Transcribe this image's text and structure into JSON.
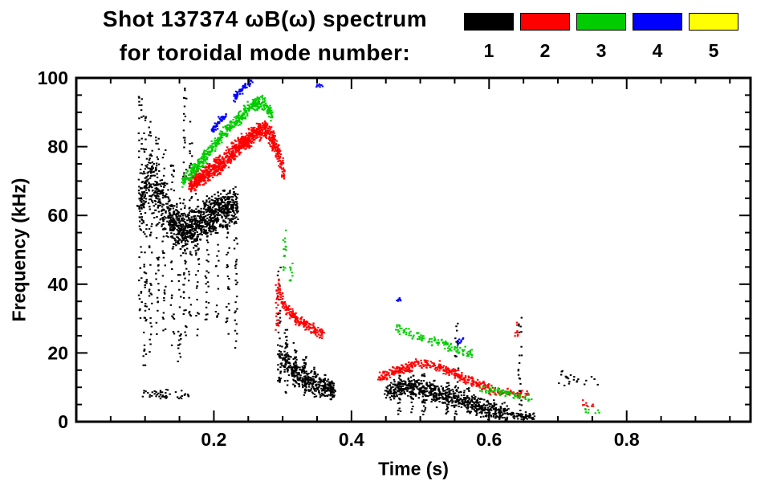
{
  "chart_data": {
    "type": "scatter",
    "title": "Shot 137374 ωB(ω) spectrum",
    "subtitle": "for toroidal mode number:",
    "xlabel": "Time (s)",
    "ylabel": "Frequency (kHz)",
    "xlim": [
      0.0,
      0.98
    ],
    "ylim": [
      0,
      100
    ],
    "xticks": [
      0.2,
      0.4,
      0.6,
      0.8
    ],
    "xtick_labels": [
      "0.2",
      "0.4",
      "0.6",
      "0.8"
    ],
    "xminor_step": 0.05,
    "yticks": [
      0,
      20,
      40,
      60,
      80,
      100
    ],
    "ytick_labels": [
      "0",
      "20",
      "40",
      "60",
      "80",
      "100"
    ],
    "yminor_step": 5,
    "grid": false,
    "legend_position": "top-right",
    "legend": [
      {
        "label": "1",
        "color": "#000000"
      },
      {
        "label": "2",
        "color": "#ff0000"
      },
      {
        "label": "3",
        "color": "#00cc00"
      },
      {
        "label": "4",
        "color": "#0000ff"
      },
      {
        "label": "5",
        "color": "#ffff00"
      }
    ],
    "series": [
      {
        "name": "toroidal mode n=1",
        "label": "1",
        "color": "#000000",
        "clusters": [
          {
            "t": [
              0.09,
              0.105,
              0.12,
              0.135
            ],
            "f": [
              62,
              70,
              65,
              61
            ],
            "spread": 9,
            "n": 260
          },
          {
            "t": [
              0.135,
              0.155,
              0.175,
              0.195,
              0.215,
              0.235
            ],
            "f": [
              60,
              55,
              57,
              60,
              62,
              63
            ],
            "spread": 6.5,
            "n": 850
          },
          {
            "t": [
              0.095,
              0.165
            ],
            "f": [
              8,
              8
            ],
            "spread": 1.5,
            "n": 45
          },
          {
            "t": [
              0.295,
              0.315,
              0.335,
              0.355,
              0.375
            ],
            "f": [
              20,
              15,
              12,
              10.5,
              9.5
            ],
            "spread": 4,
            "n": 330
          },
          {
            "t": [
              0.45,
              0.48,
              0.51,
              0.54,
              0.57,
              0.6,
              0.63
            ],
            "f": [
              9,
              10,
              9,
              7.5,
              5.5,
              3.5,
              2.5
            ],
            "spread": 3.2,
            "n": 650
          },
          {
            "t": [
              0.63,
              0.665
            ],
            "f": [
              2,
              1.5
            ],
            "spread": 1.2,
            "n": 60
          },
          {
            "t": [
              0.7,
              0.76
            ],
            "f": [
              13,
              11
            ],
            "spread": 2.5,
            "n": 22
          }
        ],
        "streaks": [
          {
            "t": 0.093,
            "f0": 30,
            "f1": 95,
            "n": 45
          },
          {
            "t": 0.1,
            "f0": 15,
            "f1": 93,
            "n": 55
          },
          {
            "t": 0.108,
            "f0": 20,
            "f1": 88,
            "n": 45
          },
          {
            "t": 0.118,
            "f0": 25,
            "f1": 83,
            "n": 40
          },
          {
            "t": 0.128,
            "f0": 22,
            "f1": 80,
            "n": 35
          },
          {
            "t": 0.14,
            "f0": 18,
            "f1": 75,
            "n": 35
          },
          {
            "t": 0.15,
            "f0": 15,
            "f1": 72,
            "n": 35
          },
          {
            "t": 0.158,
            "f0": 25,
            "f1": 97,
            "n": 50
          },
          {
            "t": 0.166,
            "f0": 30,
            "f1": 90,
            "n": 35
          },
          {
            "t": 0.176,
            "f0": 25,
            "f1": 70,
            "n": 30
          },
          {
            "t": 0.19,
            "f0": 28,
            "f1": 66,
            "n": 25
          },
          {
            "t": 0.205,
            "f0": 30,
            "f1": 66,
            "n": 25
          },
          {
            "t": 0.22,
            "f0": 25,
            "f1": 66,
            "n": 30
          },
          {
            "t": 0.232,
            "f0": 18,
            "f1": 62,
            "n": 25
          },
          {
            "t": 0.295,
            "f0": 10,
            "f1": 45,
            "n": 35
          },
          {
            "t": 0.305,
            "f0": 8,
            "f1": 27,
            "n": 30
          },
          {
            "t": 0.318,
            "f0": 8,
            "f1": 23,
            "n": 28
          },
          {
            "t": 0.332,
            "f0": 7,
            "f1": 19,
            "n": 26
          },
          {
            "t": 0.347,
            "f0": 7,
            "f1": 16,
            "n": 22
          },
          {
            "t": 0.36,
            "f0": 7,
            "f1": 14,
            "n": 20
          },
          {
            "t": 0.372,
            "f0": 6,
            "f1": 12,
            "n": 16
          },
          {
            "t": 0.47,
            "f0": 2,
            "f1": 15,
            "n": 25
          },
          {
            "t": 0.488,
            "f0": 2,
            "f1": 16,
            "n": 25
          },
          {
            "t": 0.505,
            "f0": 2,
            "f1": 14,
            "n": 22
          },
          {
            "t": 0.522,
            "f0": 2,
            "f1": 13,
            "n": 20
          },
          {
            "t": 0.54,
            "f0": 2,
            "f1": 12,
            "n": 18
          },
          {
            "t": 0.553,
            "f0": 2,
            "f1": 30,
            "n": 22
          },
          {
            "t": 0.57,
            "f0": 1,
            "f1": 10,
            "n": 16
          },
          {
            "t": 0.645,
            "f0": 1,
            "f1": 33,
            "n": 26
          }
        ]
      },
      {
        "name": "toroidal mode n=2",
        "label": "2",
        "color": "#ff0000",
        "clusters": [
          {
            "t": [
              0.165,
              0.19,
              0.215,
              0.24,
              0.262,
              0.278,
              0.292,
              0.302
            ],
            "f": [
              69,
              72,
              76,
              81,
              84,
              85,
              79,
              72
            ],
            "spread": 3.2,
            "n": 950
          },
          {
            "t": [
              0.292,
              0.305,
              0.32,
              0.34,
              0.36
            ],
            "f": [
              39,
              33,
              30,
              27.5,
              25.5
            ],
            "spread": 2.0,
            "n": 210
          },
          {
            "t": [
              0.44,
              0.47,
              0.5,
              0.53,
              0.56,
              0.585,
              0.605
            ],
            "f": [
              13,
              15,
              17,
              16,
              13,
              11,
              9
            ],
            "spread": 1.7,
            "n": 380
          },
          {
            "t": [
              0.605,
              0.66
            ],
            "f": [
              9,
              8
            ],
            "spread": 1.4,
            "n": 60
          },
          {
            "t": [
              0.735,
              0.76
            ],
            "f": [
              5,
              4
            ],
            "spread": 1.5,
            "n": 10
          }
        ],
        "streaks": [
          {
            "t": 0.292,
            "f0": 26,
            "f1": 42,
            "n": 25
          },
          {
            "t": 0.64,
            "f0": 24,
            "f1": 30,
            "n": 8
          }
        ]
      },
      {
        "name": "toroidal mode n=3",
        "label": "3",
        "color": "#00cc00",
        "clusters": [
          {
            "t": [
              0.155,
              0.175,
              0.195,
              0.215,
              0.235,
              0.255,
              0.27,
              0.285
            ],
            "f": [
              70,
              74,
              79,
              84,
              88,
              92,
              93,
              89
            ],
            "spread": 2.2,
            "n": 520
          },
          {
            "t": [
              0.465,
              0.495,
              0.525,
              0.555,
              0.575
            ],
            "f": [
              27,
              25,
              23,
              21,
              20
            ],
            "spread": 1.6,
            "n": 120
          },
          {
            "t": [
              0.585,
              0.62,
              0.66
            ],
            "f": [
              10,
              8.5,
              6.5
            ],
            "spread": 1.5,
            "n": 70
          },
          {
            "t": [
              0.735,
              0.765
            ],
            "f": [
              3.5,
              3
            ],
            "spread": 1.0,
            "n": 8
          }
        ],
        "streaks": [
          {
            "t": 0.303,
            "f0": 44,
            "f1": 56,
            "n": 16
          },
          {
            "t": 0.312,
            "f0": 40,
            "f1": 48,
            "n": 10
          }
        ]
      },
      {
        "name": "toroidal mode n=4",
        "label": "4",
        "color": "#0000ff",
        "clusters": [
          {
            "t": [
              0.198,
              0.216
            ],
            "f": [
              85,
              89
            ],
            "spread": 1.4,
            "n": 55
          },
          {
            "t": [
              0.228,
              0.258
            ],
            "f": [
              94,
              100
            ],
            "spread": 1.4,
            "n": 70
          },
          {
            "t": [
              0.35,
              0.358
            ],
            "f": [
              97,
              98
            ],
            "spread": 1.0,
            "n": 8
          },
          {
            "t": [
              0.466,
              0.47
            ],
            "f": [
              35,
              35.5
            ],
            "spread": 0.8,
            "n": 6
          },
          {
            "t": [
              0.552,
              0.566
            ],
            "f": [
              23,
              24
            ],
            "spread": 1.0,
            "n": 10
          }
        ],
        "streaks": []
      },
      {
        "name": "toroidal mode n=5",
        "label": "5",
        "color": "#ffff00",
        "clusters": [],
        "streaks": []
      }
    ]
  }
}
